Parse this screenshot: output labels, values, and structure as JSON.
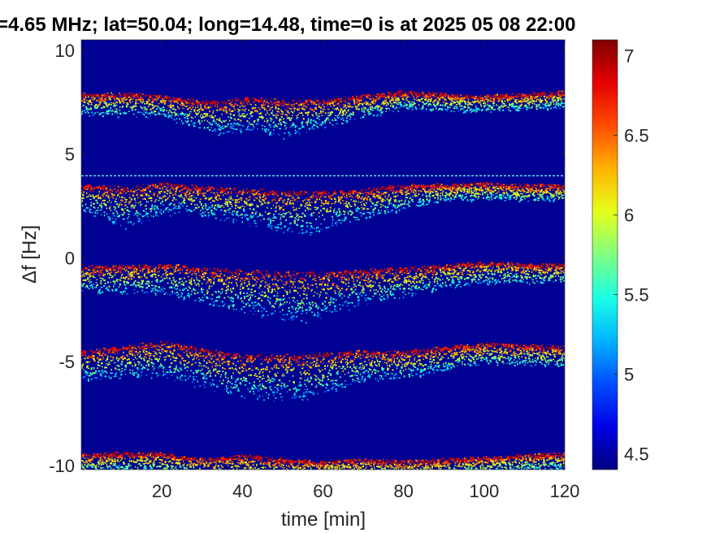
{
  "chart_data": {
    "type": "heatmap",
    "title": "=4.65 MHz;  lat=50.04; long=14.48, time=0 is at 2025 05 08 22:00",
    "xlabel": "time [min]",
    "ylabel": "Δf [Hz]",
    "xlim": [
      0,
      120
    ],
    "ylim": [
      -10.2,
      10.5
    ],
    "xticks": [
      20,
      40,
      60,
      80,
      100,
      120
    ],
    "yticks": [
      10,
      5,
      0,
      -5,
      -10
    ],
    "grid": false,
    "background_value": 4.45,
    "colorbar": {
      "colormap": "jet",
      "range": [
        4.4,
        7.1
      ],
      "ticks": [
        7,
        6.5,
        6,
        5.5,
        5,
        4.5
      ]
    },
    "reference_line": {
      "y": 3.95
    },
    "traces": [
      {
        "label": "",
        "center": [
          [
            0,
            7.9
          ],
          [
            10,
            7.9
          ],
          [
            20,
            7.8
          ],
          [
            28,
            7.6
          ],
          [
            34,
            7.5
          ],
          [
            40,
            7.7
          ],
          [
            50,
            7.6
          ],
          [
            60,
            7.6
          ],
          [
            70,
            7.8
          ],
          [
            80,
            8.0
          ],
          [
            100,
            7.8
          ],
          [
            120,
            8.0
          ]
        ],
        "spread": [
          [
            0,
            1.0
          ],
          [
            20,
            1.0
          ],
          [
            35,
            1.5
          ],
          [
            50,
            1.8
          ],
          [
            60,
            1.3
          ],
          [
            80,
            0.8
          ],
          [
            120,
            0.7
          ]
        ]
      },
      {
        "label": "",
        "center": [
          [
            0,
            3.5
          ],
          [
            10,
            3.4
          ],
          [
            20,
            3.6
          ],
          [
            30,
            3.4
          ],
          [
            40,
            3.3
          ],
          [
            50,
            3.2
          ],
          [
            60,
            3.2
          ],
          [
            70,
            3.3
          ],
          [
            80,
            3.5
          ],
          [
            100,
            3.6
          ],
          [
            110,
            3.5
          ],
          [
            120,
            3.5
          ]
        ],
        "spread": [
          [
            0,
            1.2
          ],
          [
            10,
            2.0
          ],
          [
            25,
            1.3
          ],
          [
            40,
            1.6
          ],
          [
            55,
            2.1
          ],
          [
            70,
            1.4
          ],
          [
            90,
            0.8
          ],
          [
            120,
            0.7
          ]
        ]
      },
      {
        "label": "",
        "center": [
          [
            0,
            -0.4
          ],
          [
            10,
            -0.4
          ],
          [
            20,
            -0.3
          ],
          [
            30,
            -0.5
          ],
          [
            40,
            -0.6
          ],
          [
            50,
            -0.7
          ],
          [
            60,
            -0.7
          ],
          [
            70,
            -0.6
          ],
          [
            80,
            -0.5
          ],
          [
            100,
            -0.2
          ],
          [
            110,
            -0.3
          ],
          [
            120,
            -0.3
          ]
        ],
        "spread": [
          [
            0,
            1.2
          ],
          [
            20,
            1.4
          ],
          [
            40,
            2.0
          ],
          [
            55,
            2.4
          ],
          [
            70,
            1.6
          ],
          [
            90,
            1.1
          ],
          [
            120,
            0.8
          ]
        ]
      },
      {
        "label": "",
        "center": [
          [
            0,
            -4.5
          ],
          [
            10,
            -4.3
          ],
          [
            20,
            -4.0
          ],
          [
            30,
            -4.4
          ],
          [
            40,
            -4.7
          ],
          [
            50,
            -4.7
          ],
          [
            60,
            -4.6
          ],
          [
            70,
            -4.5
          ],
          [
            80,
            -4.5
          ],
          [
            100,
            -4.1
          ],
          [
            110,
            -4.2
          ],
          [
            120,
            -4.3
          ]
        ],
        "spread": [
          [
            0,
            1.3
          ],
          [
            15,
            1.6
          ],
          [
            40,
            2.0
          ],
          [
            55,
            2.2
          ],
          [
            70,
            1.4
          ],
          [
            90,
            1.1
          ],
          [
            120,
            0.9
          ]
        ]
      },
      {
        "label": "",
        "center": [
          [
            0,
            -9.5
          ],
          [
            10,
            -9.4
          ],
          [
            20,
            -9.4
          ],
          [
            30,
            -9.7
          ],
          [
            40,
            -9.5
          ],
          [
            50,
            -9.7
          ],
          [
            60,
            -9.8
          ],
          [
            70,
            -9.7
          ],
          [
            80,
            -9.8
          ],
          [
            100,
            -9.6
          ],
          [
            110,
            -9.5
          ],
          [
            120,
            -9.4
          ]
        ],
        "spread": [
          [
            0,
            0.8
          ],
          [
            30,
            1.0
          ],
          [
            45,
            1.2
          ],
          [
            60,
            0.8
          ],
          [
            120,
            0.7
          ]
        ]
      }
    ]
  }
}
